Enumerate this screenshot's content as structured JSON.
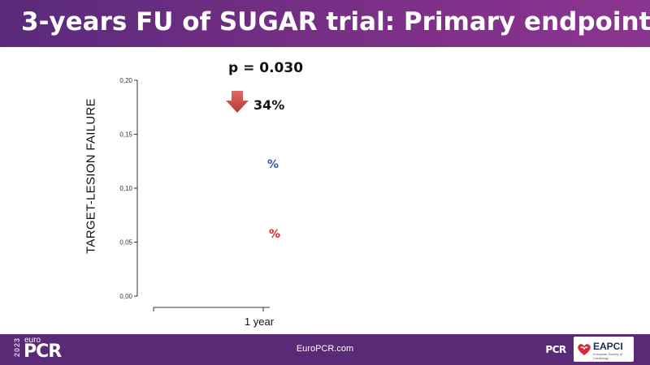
{
  "header": {
    "title": "3-years FU of SUGAR trial: Primary endpoint"
  },
  "annotations": {
    "p_value": "p = 0.030",
    "reduction": "34%",
    "blue_label": "%",
    "red_label": "%"
  },
  "chart_data": {
    "type": "line",
    "ylabel": "TARGET-LESION FAILURE",
    "xlabel": "",
    "ylim": [
      0,
      0.2
    ],
    "y_ticks": [
      "0,00",
      "0,05",
      "0,10",
      "0,15",
      "0,20"
    ],
    "x_ticks": [
      "",
      "1 year"
    ],
    "series": []
  },
  "footer": {
    "url": "EuroPCR.com",
    "logo_year": "2023",
    "logo_euro": "euro",
    "logo_pcr": "PCR",
    "badge_pcr": "PCR",
    "eapci": "EAPCI",
    "eapci_sub": "European Society of Cardiology"
  },
  "colors": {
    "header_bg": "#6b2d80",
    "footer_bg": "#5a2a77",
    "arrow": "#cf4a45",
    "blue": "#2f5aa8",
    "red": "#d9262c"
  }
}
